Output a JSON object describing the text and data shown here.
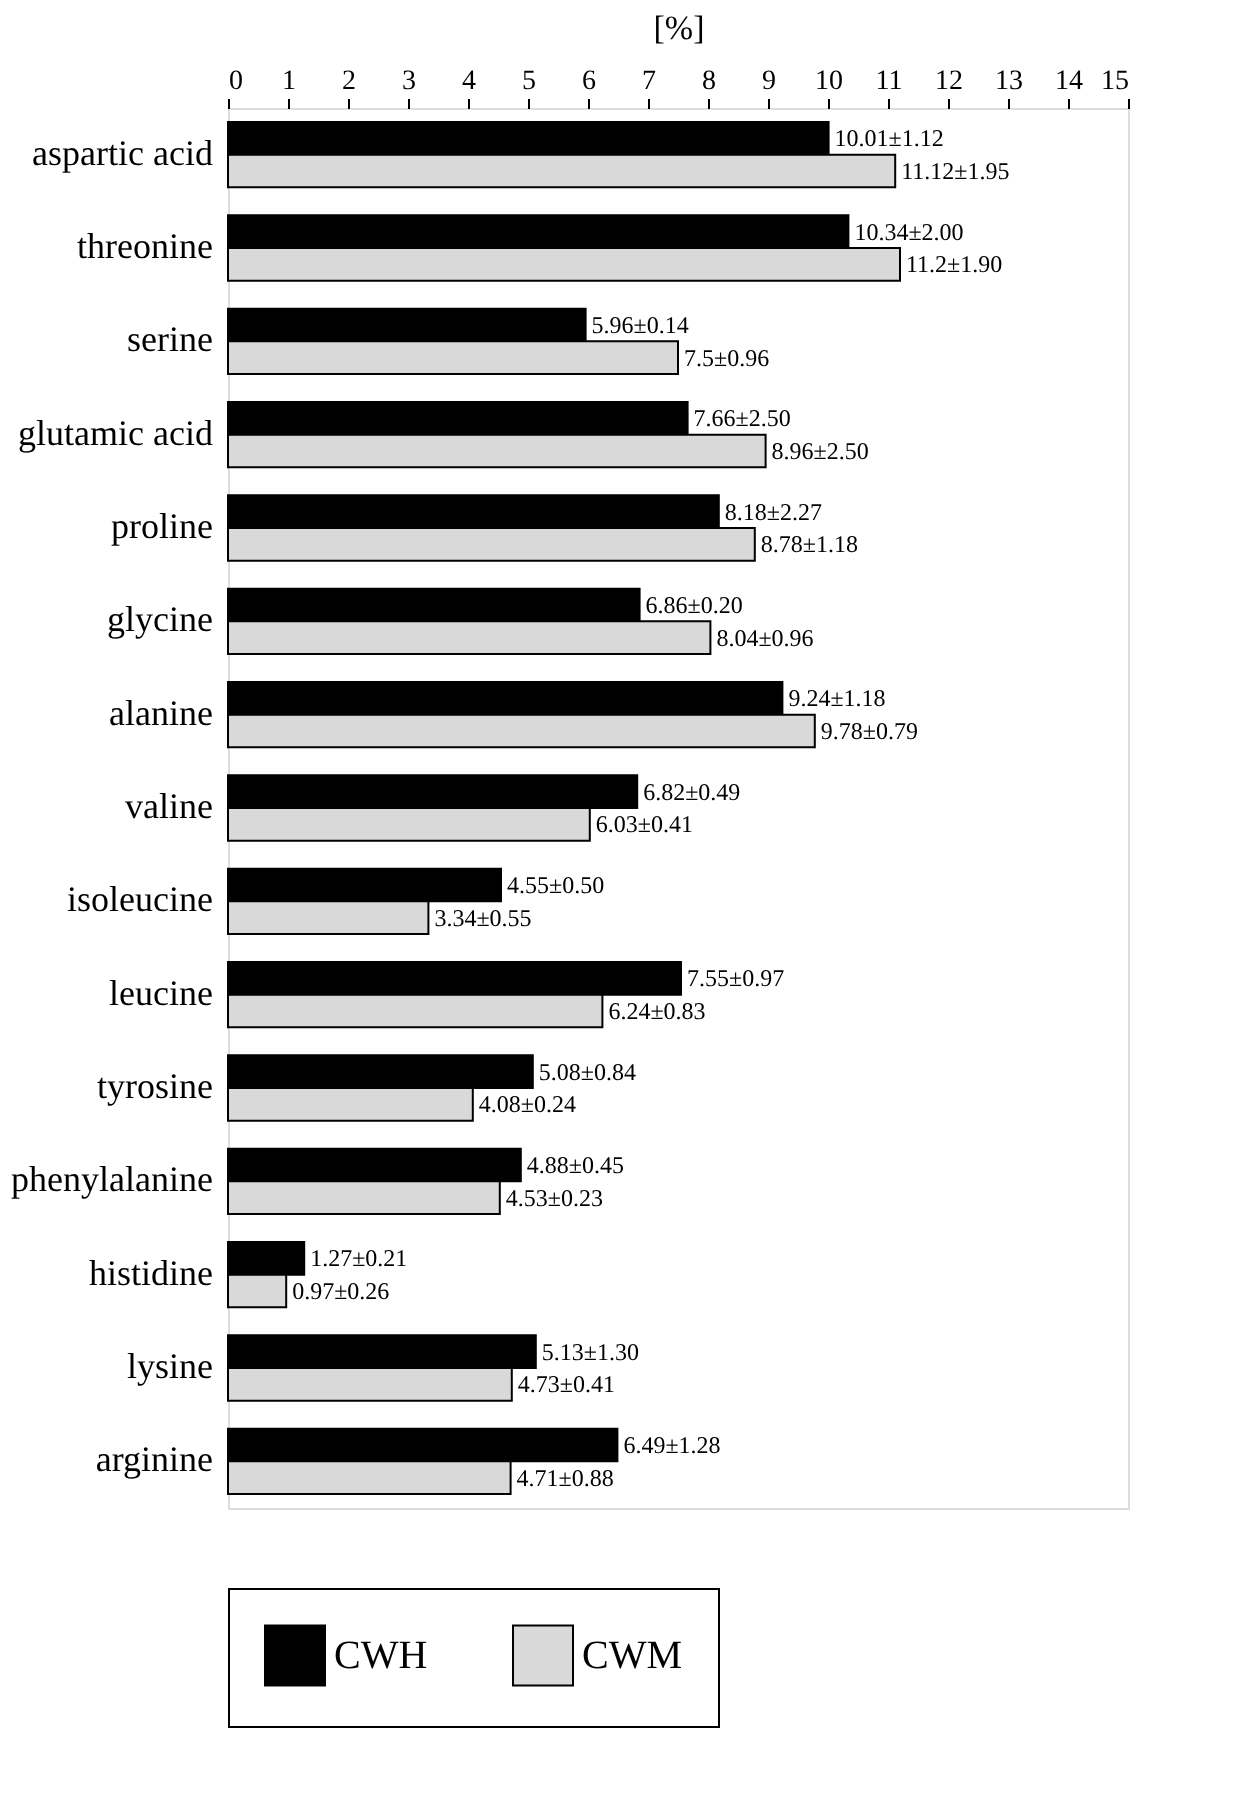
{
  "chart_data": {
    "type": "bar",
    "orientation": "horizontal",
    "xlabel": "[%]",
    "categories": [
      "aspartic acid",
      "threonine",
      "serine",
      "glutamic acid",
      "proline",
      "glycine",
      "alanine",
      "valine",
      "isoleucine",
      "leucine",
      "tyrosine",
      "phenylalanine",
      "histidine",
      "lysine",
      "arginine"
    ],
    "series": [
      {
        "name": "CWH",
        "color": "#000000",
        "values": [
          10.01,
          10.34,
          5.96,
          7.66,
          8.18,
          6.86,
          9.24,
          6.82,
          4.55,
          7.55,
          5.08,
          4.88,
          1.27,
          5.13,
          6.49
        ],
        "value_labels": [
          "10.01±1.12",
          "10.34±2.00",
          "5.96±0.14",
          "7.66±2.50",
          "8.18±2.27",
          "6.86±0.20",
          "9.24±1.18",
          "6.82±0.49",
          "4.55±0.50",
          "7.55±0.97",
          "5.08±0.84",
          "4.88±0.45",
          "1.27±0.21",
          "5.13±1.30",
          "6.49±1.28"
        ]
      },
      {
        "name": "CWM",
        "color": "#d9d9d9",
        "values": [
          11.12,
          11.2,
          7.5,
          8.96,
          8.78,
          8.04,
          9.78,
          6.03,
          3.34,
          6.24,
          4.08,
          4.53,
          0.97,
          4.73,
          4.71
        ],
        "value_labels": [
          "11.12±1.95",
          "11.2±1.90",
          "7.5±0.96",
          "8.96±2.50",
          "8.78±1.18",
          "8.04±0.96",
          "9.78±0.79",
          "6.03±0.41",
          "3.34±0.55",
          "6.24±0.83",
          "4.08±0.24",
          "4.53±0.23",
          "0.97±0.26",
          "4.73±0.41",
          "4.71±0.88"
        ]
      }
    ],
    "xlim": [
      0,
      15
    ],
    "xticks": [
      0,
      1,
      2,
      3,
      4,
      5,
      6,
      7,
      8,
      9,
      10,
      11,
      12,
      13,
      14,
      15
    ],
    "grid": false,
    "legend": "bottom"
  }
}
